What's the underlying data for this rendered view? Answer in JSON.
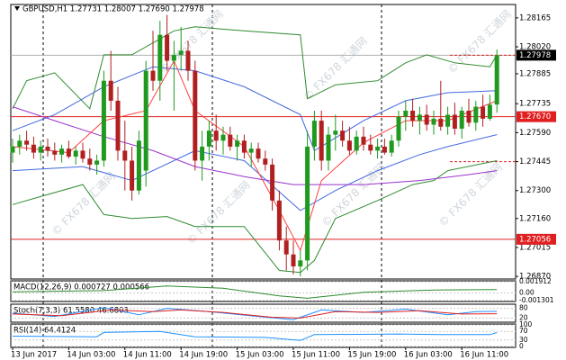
{
  "chart_data": {
    "type": "candlestick",
    "title": "GBPUSD,H1 1.27731 1.28007 1.27690 1.27978",
    "watermark": "© FX678 汇通网",
    "categories": [
      "13 Jun 2017",
      null,
      null,
      null,
      null,
      null,
      null,
      null,
      "14 Jun 03:00",
      null,
      null,
      null,
      null,
      null,
      null,
      null,
      "14 Jun 11:00",
      null,
      null,
      null,
      null,
      null,
      null,
      null,
      "14 Jun 19:00",
      null,
      null,
      null,
      null,
      null,
      null,
      null,
      "15 Jun 03:00",
      null,
      null,
      null,
      null,
      null,
      null,
      null,
      "15 Jun 11:00",
      null,
      null,
      null,
      null,
      null,
      null,
      null,
      "15 Jun 19:00",
      null,
      null,
      null,
      null,
      null,
      null,
      null,
      "16 Jun 03:00",
      null,
      null,
      null,
      null,
      null,
      null,
      null,
      "16 Jun 11:00",
      null,
      null,
      null,
      null,
      null
    ],
    "open": [
      1.2749,
      1.2752,
      1.2755,
      1.2753,
      1.2749,
      1.2752,
      1.275,
      1.2748,
      1.2751,
      1.2747,
      1.275,
      1.2746,
      1.2743,
      1.2745,
      1.2785,
      1.2775,
      1.275,
      1.2745,
      1.273,
      1.274,
      1.279,
      1.2785,
      1.2808,
      1.2795,
      1.2798,
      1.28,
      1.279,
      1.2745,
      1.2752,
      1.276,
      1.2755,
      1.2758,
      1.2752,
      1.2755,
      1.2749,
      1.2751,
      1.2746,
      1.2743,
      1.2725,
      1.2705,
      1.2698,
      1.2692,
      1.2695,
      1.2752,
      1.2765,
      1.2745,
      1.2758,
      1.276,
      1.2755,
      1.275,
      1.2757,
      1.2753,
      1.275,
      1.2752,
      1.2749,
      1.2755,
      1.2767,
      1.277,
      1.2765,
      1.2768,
      1.2763,
      1.2766,
      1.2762,
      1.2768,
      1.2761,
      1.277,
      1.2764,
      1.2772,
      1.2766,
      1.27731
    ],
    "high": [
      1.2756,
      1.2758,
      1.276,
      1.2757,
      1.2755,
      1.2756,
      1.2754,
      1.2753,
      1.2755,
      1.2752,
      1.2754,
      1.2751,
      1.2748,
      1.279,
      1.28,
      1.2782,
      1.2765,
      1.2752,
      1.276,
      1.2795,
      1.281,
      1.2815,
      1.2818,
      1.2805,
      1.2812,
      1.2805,
      1.2795,
      1.276,
      1.2765,
      1.2768,
      1.2762,
      1.2762,
      1.2758,
      1.2758,
      1.2754,
      1.2754,
      1.275,
      1.2746,
      1.273,
      1.2712,
      1.2705,
      1.27,
      1.276,
      1.277,
      1.277,
      1.2762,
      1.2768,
      1.2765,
      1.2762,
      1.276,
      1.2762,
      1.2758,
      1.2756,
      1.2756,
      1.2758,
      1.277,
      1.2775,
      1.2776,
      1.2772,
      1.2773,
      1.277,
      1.2785,
      1.2772,
      1.2774,
      1.2772,
      1.2776,
      1.2775,
      1.2778,
      1.2778,
      1.28007
    ],
    "low": [
      1.2744,
      1.2748,
      1.275,
      1.2746,
      1.2745,
      1.2747,
      1.2745,
      1.2744,
      1.2746,
      1.2743,
      1.2744,
      1.274,
      1.2738,
      1.2742,
      1.277,
      1.2745,
      1.273,
      1.2725,
      1.2728,
      1.2732,
      1.278,
      1.2775,
      1.279,
      1.277,
      1.279,
      1.2785,
      1.274,
      1.2735,
      1.2745,
      1.275,
      1.2748,
      1.275,
      1.2745,
      1.2746,
      1.2742,
      1.2744,
      1.274,
      1.272,
      1.27,
      1.269,
      1.2688,
      1.2687,
      1.269,
      1.2745,
      1.274,
      1.274,
      1.275,
      1.2752,
      1.2748,
      1.2748,
      1.275,
      1.2748,
      1.2746,
      1.2748,
      1.2747,
      1.2752,
      1.276,
      1.2762,
      1.2758,
      1.276,
      1.2758,
      1.276,
      1.2758,
      1.2758,
      1.2756,
      1.2762,
      1.276,
      1.2762,
      1.2765,
      1.2769
    ],
    "close": [
      1.2752,
      1.2755,
      1.2753,
      1.2749,
      1.2752,
      1.275,
      1.2748,
      1.2751,
      1.2747,
      1.275,
      1.2746,
      1.2743,
      1.2745,
      1.2785,
      1.2775,
      1.275,
      1.2745,
      1.273,
      1.2755,
      1.279,
      1.2785,
      1.2808,
      1.2795,
      1.2798,
      1.28,
      1.279,
      1.2745,
      1.2752,
      1.276,
      1.2755,
      1.2758,
      1.2752,
      1.2755,
      1.2749,
      1.2751,
      1.2746,
      1.2743,
      1.2725,
      1.2705,
      1.2698,
      1.2692,
      1.2695,
      1.2752,
      1.2765,
      1.2745,
      1.2758,
      1.276,
      1.2755,
      1.275,
      1.2757,
      1.2753,
      1.275,
      1.2752,
      1.2749,
      1.2755,
      1.2767,
      1.277,
      1.2765,
      1.2768,
      1.2763,
      1.2766,
      1.2762,
      1.2768,
      1.2761,
      1.277,
      1.2764,
      1.2772,
      1.2766,
      1.2773,
      1.27978
    ],
    "up_color": "#1f9a1f",
    "down_color": "#b02020",
    "ylim": [
      1.26857,
      1.28232
    ],
    "yticks": [
      1.28165,
      {
        "value": 1.2802,
        "label": "1.28020"
      },
      1.27885,
      1.27735,
      {
        "value": 1.2759,
        "label": "1.27590"
      },
      1.27445,
      {
        "value": 1.273,
        "label": "1.27300"
      },
      {
        "value": 1.2716,
        "label": "1.27160"
      },
      1.27015,
      {
        "value": 1.2687,
        "label": "1.26870"
      }
    ],
    "overlays": [
      {
        "color": "#2e8b2e",
        "x": [
          0,
          2,
          6,
          11,
          13,
          17,
          23,
          26,
          33,
          41,
          42,
          46,
          52,
          56,
          59,
          63,
          68,
          69
        ],
        "values": [
          1.2771,
          1.2785,
          1.2789,
          1.2771,
          1.2798,
          1.2798,
          1.281,
          1.2812,
          1.281,
          1.2808,
          1.2776,
          1.2783,
          1.2785,
          1.2794,
          1.2798,
          1.2794,
          1.2792,
          1.2798
        ]
      },
      {
        "color": "#2e8b2e",
        "x": [
          0,
          4,
          10,
          13,
          17,
          22,
          26,
          33,
          38,
          41,
          43,
          46,
          52,
          57,
          60,
          62,
          69
        ],
        "values": [
          1.2723,
          1.2727,
          1.2733,
          1.2718,
          1.2716,
          1.2717,
          1.2712,
          1.2712,
          1.269,
          1.2689,
          1.2695,
          1.2716,
          1.2725,
          1.2733,
          1.2735,
          1.274,
          1.2745
        ]
      },
      {
        "color": "#4169e1",
        "x": [
          0,
          6,
          13,
          20,
          26,
          33,
          41,
          43,
          50,
          56,
          62,
          69
        ],
        "values": [
          1.276,
          1.2768,
          1.2782,
          1.2792,
          1.279,
          1.2782,
          1.2768,
          1.275,
          1.2765,
          1.2775,
          1.2779,
          1.278
        ]
      },
      {
        "color": "#4169e1",
        "x": [
          0,
          10,
          17,
          26,
          33,
          41,
          46,
          52,
          58,
          62,
          69
        ],
        "values": [
          1.274,
          1.2742,
          1.2735,
          1.275,
          1.2745,
          1.272,
          1.273,
          1.274,
          1.2748,
          1.2752,
          1.2758
        ]
      },
      {
        "color": "#9932cc",
        "x": [
          0,
          6,
          13,
          20,
          26,
          33,
          40,
          50,
          58,
          65,
          69
        ],
        "values": [
          1.2772,
          1.2765,
          1.2757,
          1.275,
          1.2742,
          1.2737,
          1.2733,
          1.2733,
          1.2735,
          1.2738,
          1.274
        ]
      },
      {
        "color": "#ff4040",
        "x": [
          0,
          8,
          13,
          19,
          23,
          26,
          33,
          38,
          41,
          44,
          50,
          56,
          62,
          69
        ],
        "values": [
          1.2752,
          1.2749,
          1.2765,
          1.277,
          1.2795,
          1.277,
          1.2752,
          1.272,
          1.27,
          1.2735,
          1.2754,
          1.2765,
          1.2765,
          1.2775
        ]
      }
    ],
    "current_price": {
      "value": 1.27978,
      "label": "1.27978"
    },
    "hlines": [
      {
        "value": 1.2767,
        "label": "1.27670",
        "color": "#e02020"
      },
      {
        "value": 1.27056,
        "label": "1.27056",
        "color": "#e02020"
      }
    ],
    "dashed_levels": [
      1.27978,
      1.27445
    ],
    "panels": [
      {
        "label": "MACD(12,26,9) 0.000727 0.000566",
        "ylim": [
          -0.001301,
          0.001912
        ],
        "yticks": [
          0.001912,
          {
            "value": 0,
            "label": "0.00"
          },
          -0.001301
        ],
        "series": [
          {
            "color": "#2e8b2e",
            "x": [
              0,
              13,
              22,
              30,
              38,
              42,
              50,
              60,
              69
            ],
            "values": [
              0.0002,
              0.0004,
              0.0012,
              0.0008,
              -0.0005,
              -0.0009,
              0.0001,
              0.0005,
              0.000566
            ]
          }
        ]
      },
      {
        "label": "Stoch(7,3,3) 61.5580 46.6803",
        "ylim": [
          0,
          100
        ],
        "yticks": [
          80,
          20
        ],
        "series": [
          {
            "color": "#1e90ff",
            "x": [
              0,
              6,
              13,
              18,
              22,
              28,
              35,
              40,
              44,
              50,
              56,
              62,
              66,
              69
            ],
            "values": [
              50,
              30,
              85,
              40,
              80,
              60,
              30,
              10,
              70,
              55,
              75,
              40,
              60,
              61.558
            ]
          },
          {
            "color": "#e02020",
            "x": [
              0,
              7,
              14,
              20,
              24,
              30,
              37,
              41,
              46,
              52,
              58,
              64,
              69
            ],
            "values": [
              45,
              35,
              70,
              60,
              70,
              55,
              25,
              20,
              60,
              55,
              65,
              45,
              46.6803
            ]
          }
        ]
      },
      {
        "label": "RSI(14) 64.4124",
        "ylim": [
          0,
          100
        ],
        "yticks": [
          100,
          70,
          30,
          0
        ],
        "series": [
          {
            "color": "#1e90ff",
            "x": [
              0,
              12,
              13,
              21,
              26,
              36,
              41,
              43,
              55,
              61,
              68,
              69
            ],
            "values": [
              48,
              45,
              65,
              70,
              45,
              42,
              28,
              55,
              58,
              55,
              55,
              64.4124
            ]
          }
        ]
      }
    ]
  }
}
